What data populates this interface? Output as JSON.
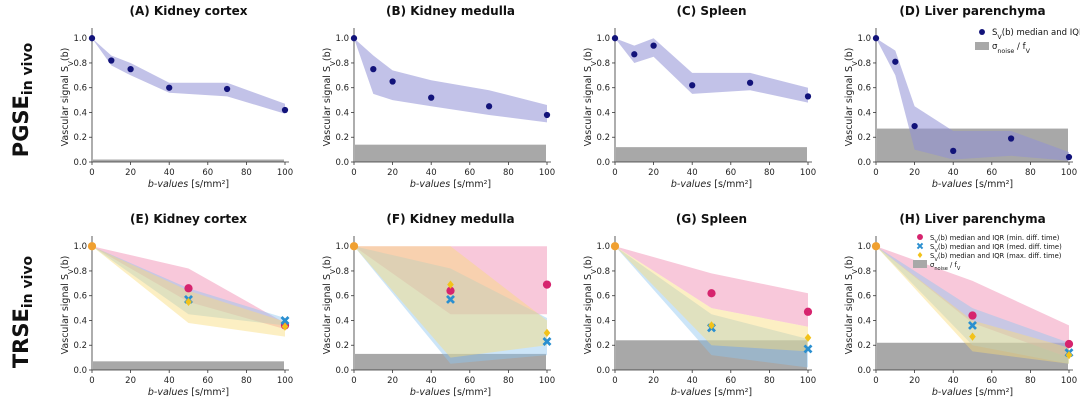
{
  "figure": {
    "row_labels": [
      {
        "main": "PGSE",
        "sub": "in vivo"
      },
      {
        "main": "TRSE",
        "sub": "in vivo"
      }
    ]
  },
  "chart_data": [
    {
      "type": "scatter",
      "title": "(A) Kidney cortex",
      "xlabel": "b-values  [s/mm²]",
      "ylabel": "Vascular signal  S_V(b)",
      "xlim": [
        0,
        100
      ],
      "ylim": [
        0,
        1.05
      ],
      "xticks": [
        0,
        20,
        40,
        60,
        80,
        100
      ],
      "yticks": [
        0.0,
        0.2,
        0.4,
        0.6,
        0.8,
        1.0
      ],
      "series": [
        {
          "name": "S_V(b) median and IQR",
          "color": "#12137a",
          "x": [
            0,
            10,
            20,
            40,
            70,
            100
          ],
          "median": [
            1.0,
            0.82,
            0.75,
            0.6,
            0.59,
            0.42
          ],
          "q1": [
            1.0,
            0.78,
            0.7,
            0.56,
            0.53,
            0.39
          ],
          "q3": [
            1.0,
            0.86,
            0.8,
            0.64,
            0.64,
            0.47
          ],
          "band_color": "#8f8fd6"
        }
      ],
      "noise_level": 0.02
    },
    {
      "type": "scatter",
      "title": "(B) Kidney medulla",
      "xlabel": "b-values  [s/mm²]",
      "ylabel": "Vascular signal  S_V(b)",
      "xlim": [
        0,
        100
      ],
      "ylim": [
        0,
        1.05
      ],
      "xticks": [
        0,
        20,
        40,
        60,
        80,
        100
      ],
      "yticks": [
        0.0,
        0.2,
        0.4,
        0.6,
        0.8,
        1.0
      ],
      "series": [
        {
          "name": "S_V(b) median and IQR",
          "color": "#12137a",
          "x": [
            0,
            10,
            20,
            40,
            70,
            100
          ],
          "median": [
            1.0,
            0.75,
            0.65,
            0.52,
            0.45,
            0.38
          ],
          "q1": [
            1.0,
            0.55,
            0.5,
            0.45,
            0.38,
            0.32
          ],
          "q3": [
            1.0,
            0.86,
            0.74,
            0.66,
            0.58,
            0.46
          ],
          "band_color": "#8f8fd6"
        }
      ],
      "noise_level": 0.14
    },
    {
      "type": "scatter",
      "title": "(C) Spleen",
      "xlabel": "b-values  [s/mm²]",
      "ylabel": "Vascular signal  S_V(b)",
      "xlim": [
        0,
        100
      ],
      "ylim": [
        0,
        1.05
      ],
      "xticks": [
        0,
        20,
        40,
        60,
        80,
        100
      ],
      "yticks": [
        0.0,
        0.2,
        0.4,
        0.6,
        0.8,
        1.0
      ],
      "series": [
        {
          "name": "S_V(b) median and IQR",
          "color": "#12137a",
          "x": [
            0,
            10,
            20,
            40,
            70,
            100
          ],
          "median": [
            1.0,
            0.87,
            0.94,
            0.62,
            0.64,
            0.53
          ],
          "q1": [
            1.0,
            0.8,
            0.85,
            0.55,
            0.58,
            0.48
          ],
          "q3": [
            1.0,
            0.94,
            1.0,
            0.72,
            0.72,
            0.6
          ],
          "band_color": "#8f8fd6"
        }
      ],
      "noise_level": 0.12
    },
    {
      "type": "scatter",
      "title": "(D) Liver parenchyma",
      "xlabel": "b-values  [s/mm²]",
      "ylabel": "Vascular signal  S_V(b)",
      "xlim": [
        0,
        100
      ],
      "ylim": [
        0,
        1.05
      ],
      "xticks": [
        0,
        20,
        40,
        60,
        80,
        100
      ],
      "yticks": [
        0.0,
        0.2,
        0.4,
        0.6,
        0.8,
        1.0
      ],
      "series": [
        {
          "name": "S_V(b) median and IQR",
          "color": "#12137a",
          "x": [
            0,
            10,
            20,
            40,
            70,
            100
          ],
          "median": [
            1.0,
            0.81,
            0.29,
            0.09,
            0.19,
            0.04
          ],
          "q1": [
            1.0,
            0.7,
            0.1,
            0.02,
            0.05,
            0.01
          ],
          "q3": [
            1.0,
            0.9,
            0.45,
            0.25,
            0.25,
            0.08
          ],
          "band_color": "#8f8fd6"
        }
      ],
      "noise_level": 0.27,
      "legend": {
        "position": "top-right",
        "entries": [
          {
            "marker": "dot",
            "color": "#12137a",
            "label": "S_V(b) median and IQR"
          },
          {
            "marker": "box",
            "color": "#a8a8a8",
            "label": "σ_noise / f_V"
          }
        ]
      }
    },
    {
      "type": "scatter",
      "title": "(E) Kidney cortex",
      "xlabel": "b-values  [s/mm²]",
      "ylabel": "Vascular signal  S_V(b)",
      "xlim": [
        0,
        100
      ],
      "ylim": [
        0,
        1.05
      ],
      "xticks": [
        0,
        20,
        40,
        60,
        80,
        100
      ],
      "yticks": [
        0.0,
        0.2,
        0.4,
        0.6,
        0.8,
        1.0
      ],
      "series": [
        {
          "name": "S_V(b) median and IQR (min. diff. time)",
          "marker": "dot",
          "color": "#d6246e",
          "x": [
            0,
            50,
            100
          ],
          "median": [
            1.0,
            0.66,
            0.36
          ],
          "q1": [
            1.0,
            0.55,
            0.33
          ],
          "q3": [
            1.0,
            0.82,
            0.38
          ],
          "band_color": "#ef85ad"
        },
        {
          "name": "S_V(b) median and IQR (med. diff. time)",
          "marker": "cross",
          "color": "#2a8fd0",
          "x": [
            0,
            50,
            100
          ],
          "median": [
            1.0,
            0.57,
            0.4
          ],
          "q1": [
            1.0,
            0.45,
            0.36
          ],
          "q3": [
            1.0,
            0.66,
            0.42
          ],
          "band_color": "#8fc6ef"
        },
        {
          "name": "S_V(b) median and IQR (max. diff. time)",
          "marker": "diamond",
          "color": "#f2c21a",
          "x": [
            0,
            50,
            100
          ],
          "median": [
            1.0,
            0.55,
            0.35
          ],
          "q1": [
            1.0,
            0.38,
            0.27
          ],
          "q3": [
            1.0,
            0.64,
            0.39
          ],
          "band_color": "#f8dc7a"
        }
      ],
      "noise_level": 0.07
    },
    {
      "type": "scatter",
      "title": "(F) Kidney medulla",
      "xlabel": "b-values  [s/mm²]",
      "ylabel": "Vascular signal  S_V(b)",
      "xlim": [
        0,
        100
      ],
      "ylim": [
        0,
        1.05
      ],
      "xticks": [
        0,
        20,
        40,
        60,
        80,
        100
      ],
      "yticks": [
        0.0,
        0.2,
        0.4,
        0.6,
        0.8,
        1.0
      ],
      "series": [
        {
          "name": "S_V(b) median and IQR (min. diff. time)",
          "marker": "dot",
          "color": "#d6246e",
          "x": [
            0,
            50,
            100
          ],
          "median": [
            1.0,
            0.64,
            0.69
          ],
          "q1": [
            1.0,
            0.45,
            0.45
          ],
          "q3": [
            1.0,
            1.0,
            1.0
          ],
          "band_color": "#ef85ad"
        },
        {
          "name": "S_V(b) median and IQR (med. diff. time)",
          "marker": "cross",
          "color": "#2a8fd0",
          "x": [
            0,
            50,
            100
          ],
          "median": [
            1.0,
            0.57,
            0.23
          ],
          "q1": [
            1.0,
            0.05,
            0.12
          ],
          "q3": [
            1.0,
            0.82,
            0.42
          ],
          "band_color": "#8fc6ef"
        },
        {
          "name": "S_V(b) median and IQR (max. diff. time)",
          "marker": "diamond",
          "color": "#f2c21a",
          "x": [
            0,
            50,
            100
          ],
          "median": [
            1.0,
            0.69,
            0.3
          ],
          "q1": [
            1.0,
            0.1,
            0.2
          ],
          "q3": [
            1.0,
            1.0,
            0.4
          ],
          "band_color": "#f8dc7a"
        }
      ],
      "noise_level": 0.13
    },
    {
      "type": "scatter",
      "title": "(G) Spleen",
      "xlabel": "b-values  [s/mm²]",
      "ylabel": "Vascular signal  S_V(b)",
      "xlim": [
        0,
        100
      ],
      "ylim": [
        0,
        1.05
      ],
      "xticks": [
        0,
        20,
        40,
        60,
        80,
        100
      ],
      "yticks": [
        0.0,
        0.2,
        0.4,
        0.6,
        0.8,
        1.0
      ],
      "series": [
        {
          "name": "S_V(b) median and IQR (min. diff. time)",
          "marker": "dot",
          "color": "#d6246e",
          "x": [
            0,
            50,
            100
          ],
          "median": [
            1.0,
            0.62,
            0.47
          ],
          "q1": [
            1.0,
            0.5,
            0.35
          ],
          "q3": [
            1.0,
            0.78,
            0.62
          ],
          "band_color": "#ef85ad"
        },
        {
          "name": "S_V(b) median and IQR (med. diff. time)",
          "marker": "cross",
          "color": "#2a8fd0",
          "x": [
            0,
            50,
            100
          ],
          "median": [
            1.0,
            0.34,
            0.17
          ],
          "q1": [
            1.0,
            0.12,
            0.02
          ],
          "q3": [
            1.0,
            0.45,
            0.25
          ],
          "band_color": "#8fc6ef"
        },
        {
          "name": "S_V(b) median and IQR (max. diff. time)",
          "marker": "diamond",
          "color": "#f2c21a",
          "x": [
            0,
            50,
            100
          ],
          "median": [
            1.0,
            0.36,
            0.26
          ],
          "q1": [
            1.0,
            0.2,
            0.15
          ],
          "q3": [
            1.0,
            0.5,
            0.35
          ],
          "band_color": "#f8dc7a"
        }
      ],
      "noise_level": 0.24
    },
    {
      "type": "scatter",
      "title": "(H) Liver parenchyma",
      "xlabel": "b-values  [s/mm²]",
      "ylabel": "Vascular signal  S_V(b)",
      "xlim": [
        0,
        100
      ],
      "ylim": [
        0,
        1.05
      ],
      "xticks": [
        0,
        20,
        40,
        60,
        80,
        100
      ],
      "yticks": [
        0.0,
        0.2,
        0.4,
        0.6,
        0.8,
        1.0
      ],
      "series": [
        {
          "name": "S_V(b) median and IQR (min. diff. time)",
          "marker": "dot",
          "color": "#d6246e",
          "x": [
            0,
            50,
            100
          ],
          "median": [
            1.0,
            0.44,
            0.21
          ],
          "q1": [
            1.0,
            0.38,
            0.1
          ],
          "q3": [
            1.0,
            0.72,
            0.36
          ],
          "band_color": "#ef85ad"
        },
        {
          "name": "S_V(b) median and IQR (med. diff. time)",
          "marker": "cross",
          "color": "#2a8fd0",
          "x": [
            0,
            50,
            100
          ],
          "median": [
            1.0,
            0.36,
            0.14
          ],
          "q1": [
            1.0,
            0.2,
            0.05
          ],
          "q3": [
            1.0,
            0.5,
            0.22
          ],
          "band_color": "#8fc6ef"
        },
        {
          "name": "S_V(b) median and IQR (max. diff. time)",
          "marker": "diamond",
          "color": "#f2c21a",
          "x": [
            0,
            50,
            100
          ],
          "median": [
            1.0,
            0.27,
            0.12
          ],
          "q1": [
            1.0,
            0.15,
            0.05
          ],
          "q3": [
            1.0,
            0.4,
            0.18
          ],
          "band_color": "#f8dc7a"
        }
      ],
      "noise_level": 0.22,
      "legend": {
        "position": "top-right",
        "entries": [
          {
            "marker": "dot",
            "color": "#d6246e",
            "label": "S_V(b) median and IQR (min. diff. time)"
          },
          {
            "marker": "cross",
            "color": "#2a8fd0",
            "label": "S_V(b) median and IQR (med. diff. time)"
          },
          {
            "marker": "diamond",
            "color": "#f2c21a",
            "label": "S_V(b) median and IQR (max. diff. time)"
          },
          {
            "marker": "box",
            "color": "#a8a8a8",
            "label": "σ_noise / f_V"
          }
        ]
      }
    }
  ],
  "colors": {
    "noise_fill": "#a8a8a8",
    "axis": "#333333"
  }
}
